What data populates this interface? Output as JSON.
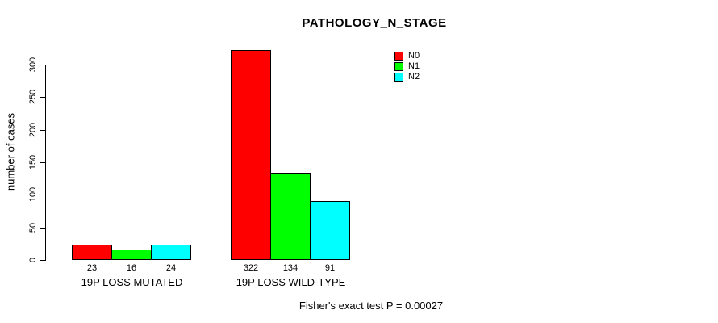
{
  "chart_data": {
    "type": "bar",
    "title": "PATHOLOGY_N_STAGE",
    "xlabel": "",
    "ylabel": "number of cases",
    "ylim": [
      0,
      300
    ],
    "yticks": [
      0,
      50,
      100,
      150,
      200,
      250,
      300
    ],
    "grid": false,
    "legend_position": "top-right-of-plot",
    "categories": [
      "19P LOSS MUTATED",
      "19P LOSS WILD-TYPE"
    ],
    "series": [
      {
        "name": "N0",
        "color": "#FF0000",
        "values": [
          23,
          322
        ]
      },
      {
        "name": "N1",
        "color": "#00FF00",
        "values": [
          16,
          134
        ]
      },
      {
        "name": "N2",
        "color": "#00FFFF",
        "values": [
          24,
          91
        ]
      }
    ],
    "bar_value_labels": [
      [
        23,
        16,
        24
      ],
      [
        322,
        134,
        91
      ]
    ],
    "footnote": "Fisher's exact test P = 0.00027",
    "colors": {
      "background": "#FFFFFF",
      "text": "#000000",
      "axis": "#000000",
      "bar_border": "#000000"
    }
  }
}
